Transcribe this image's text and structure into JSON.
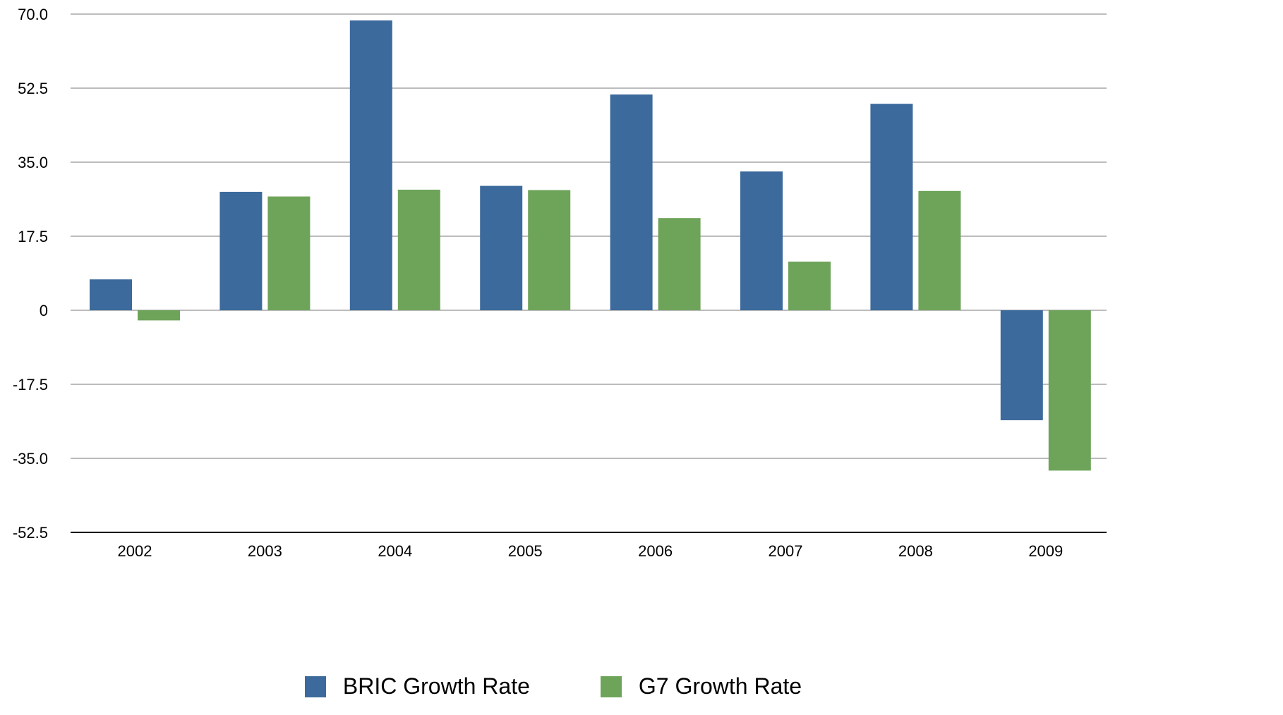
{
  "chart_data": {
    "type": "bar",
    "title": "",
    "xlabel": "",
    "ylabel": "",
    "categories": [
      "2002",
      "2003",
      "2004",
      "2005",
      "2006",
      "2007",
      "2008",
      "2009"
    ],
    "series": [
      {
        "name": "BRIC Growth Rate",
        "color": "#3c6a9c",
        "values": [
          7.3,
          28.0,
          68.5,
          29.4,
          51.0,
          32.8,
          48.8,
          -26.0
        ]
      },
      {
        "name": "G7 Growth Rate",
        "color": "#6ea45a",
        "values": [
          -2.4,
          26.9,
          28.5,
          28.4,
          21.8,
          11.5,
          28.2,
          -37.9
        ]
      }
    ],
    "ylim": [
      -52.5,
      70.0
    ],
    "yticks": [
      "70.0",
      "52.5",
      "35.0",
      "17.5",
      "0",
      "-17.5",
      "-35.0",
      "-52.5"
    ],
    "grid": true,
    "legend_position": "bottom-center"
  }
}
